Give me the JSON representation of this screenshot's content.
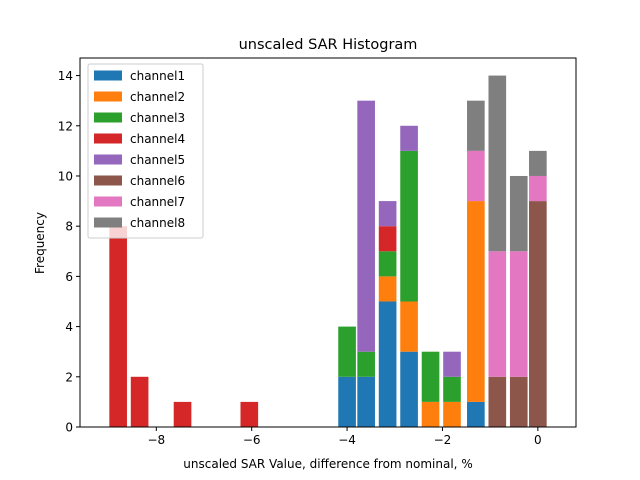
{
  "chart_data": {
    "type": "bar",
    "stacked": true,
    "title": "unscaled SAR Histogram",
    "xlabel": "unscaled SAR Value, difference from nominal, %",
    "ylabel": "Frequency",
    "xlim": [
      -9.6,
      0.8
    ],
    "ylim": [
      0,
      14.7
    ],
    "xticks": [
      -8,
      -6,
      -4,
      -2,
      0
    ],
    "xtick_labels": [
      "−8",
      "−6",
      "−4",
      "−2",
      "0"
    ],
    "yticks": [
      0,
      2,
      4,
      6,
      8,
      10,
      12,
      14
    ],
    "ytick_labels": [
      "0",
      "2",
      "4",
      "6",
      "8",
      "10",
      "12",
      "14"
    ],
    "bar_width": 0.37,
    "legend_position": "upper-left",
    "series": [
      {
        "name": "channel1",
        "color": "#1f77b4",
        "bars": [
          {
            "x": -4.0,
            "v": 2
          },
          {
            "x": -3.6,
            "v": 2
          },
          {
            "x": -3.15,
            "v": 5
          },
          {
            "x": -2.7,
            "v": 3
          },
          {
            "x": -1.3,
            "v": 1
          }
        ]
      },
      {
        "name": "channel2",
        "color": "#ff7f0e",
        "bars": [
          {
            "x": -3.15,
            "v": 1
          },
          {
            "x": -2.7,
            "v": 2
          },
          {
            "x": -2.25,
            "v": 1
          },
          {
            "x": -1.8,
            "v": 1
          },
          {
            "x": -1.3,
            "v": 8
          }
        ]
      },
      {
        "name": "channel3",
        "color": "#2ca02c",
        "bars": [
          {
            "x": -4.0,
            "v": 2
          },
          {
            "x": -3.6,
            "v": 1
          },
          {
            "x": -3.15,
            "v": 1
          },
          {
            "x": -2.7,
            "v": 6
          },
          {
            "x": -2.25,
            "v": 2
          },
          {
            "x": -1.8,
            "v": 1
          }
        ]
      },
      {
        "name": "channel4",
        "color": "#d62728",
        "bars": [
          {
            "x": -8.8,
            "v": 8
          },
          {
            "x": -8.35,
            "v": 2
          },
          {
            "x": -7.45,
            "v": 1
          },
          {
            "x": -6.05,
            "v": 1
          },
          {
            "x": -3.15,
            "v": 1
          }
        ]
      },
      {
        "name": "channel5",
        "color": "#9467bd",
        "bars": [
          {
            "x": -3.6,
            "v": 10
          },
          {
            "x": -3.15,
            "v": 1
          },
          {
            "x": -2.7,
            "v": 1
          },
          {
            "x": -1.8,
            "v": 1
          }
        ]
      },
      {
        "name": "channel6",
        "color": "#8c564b",
        "bars": [
          {
            "x": -0.85,
            "v": 2
          },
          {
            "x": -0.4,
            "v": 2
          },
          {
            "x": 0.0,
            "v": 9
          }
        ]
      },
      {
        "name": "channel7",
        "color": "#e377c2",
        "bars": [
          {
            "x": -1.3,
            "v": 2
          },
          {
            "x": -0.85,
            "v": 5
          },
          {
            "x": -0.4,
            "v": 5
          },
          {
            "x": 0.0,
            "v": 1
          }
        ]
      },
      {
        "name": "channel8",
        "color": "#7f7f7f",
        "bars": [
          {
            "x": -1.3,
            "v": 2
          },
          {
            "x": -0.85,
            "v": 7
          },
          {
            "x": -0.4,
            "v": 3
          },
          {
            "x": 0.0,
            "v": 1
          }
        ]
      }
    ]
  }
}
